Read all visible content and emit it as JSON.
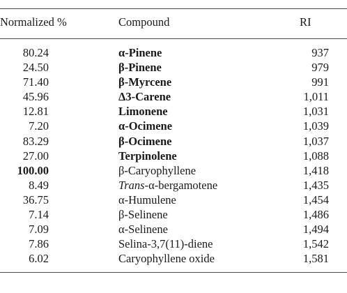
{
  "table": {
    "headers": {
      "normalized": "Normalized %",
      "compound": "Compound",
      "ri": "RI"
    },
    "rows": [
      {
        "normalized": "80.24",
        "compound": "α-Pinene",
        "ri": "937",
        "bold_compound": true,
        "bold_normalized": false
      },
      {
        "normalized": "24.50",
        "compound": "β-Pinene",
        "ri": "979",
        "bold_compound": true,
        "bold_normalized": false
      },
      {
        "normalized": "71.40",
        "compound": "β-Myrcene",
        "ri": "991",
        "bold_compound": true,
        "bold_normalized": false
      },
      {
        "normalized": "45.96",
        "compound": "Δ3-Carene",
        "ri": "1,011",
        "bold_compound": true,
        "bold_normalized": false
      },
      {
        "normalized": "12.81",
        "compound": "Limonene",
        "ri": "1,031",
        "bold_compound": true,
        "bold_normalized": false
      },
      {
        "normalized": "7.20",
        "compound": "α-Ocimene",
        "ri": "1,039",
        "bold_compound": true,
        "bold_normalized": false
      },
      {
        "normalized": "83.29",
        "compound": "β-Ocimene",
        "ri": "1,037",
        "bold_compound": true,
        "bold_normalized": false
      },
      {
        "normalized": "27.00",
        "compound": "Terpinolene",
        "ri": "1,088",
        "bold_compound": true,
        "bold_normalized": false
      },
      {
        "normalized": "100.00",
        "compound": "β-Caryophyllene",
        "ri": "1,418",
        "bold_compound": false,
        "bold_normalized": true
      },
      {
        "normalized": "8.49",
        "compound_italic": "Trans",
        "compound": "-α-bergamotene",
        "ri": "1,435",
        "bold_compound": false,
        "bold_normalized": false
      },
      {
        "normalized": "36.75",
        "compound": "α-Humulene",
        "ri": "1,454",
        "bold_compound": false,
        "bold_normalized": false
      },
      {
        "normalized": "7.14",
        "compound": "β-Selinene",
        "ri": "1,486",
        "bold_compound": false,
        "bold_normalized": false
      },
      {
        "normalized": "7.09",
        "compound": "α-Selinene",
        "ri": "1,494",
        "bold_compound": false,
        "bold_normalized": false
      },
      {
        "normalized": "7.86",
        "compound": "Selina-3,7(11)-diene",
        "ri": "1,542",
        "bold_compound": false,
        "bold_normalized": false
      },
      {
        "normalized": "6.02",
        "compound": "Caryophyllene oxide",
        "ri": "1,581",
        "bold_compound": false,
        "bold_normalized": false
      }
    ]
  }
}
